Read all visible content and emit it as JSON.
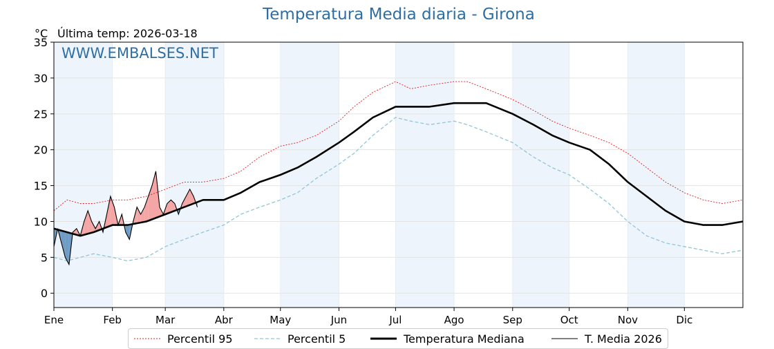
{
  "header": {
    "title": "Temperatura Media diaria - Girona",
    "unit": "°C",
    "subtitle": "Última temp: 2026-03-18",
    "watermark": "WWW.EMBALSES.NET"
  },
  "colors": {
    "p95": "#e31a1c",
    "p5": "#8fc6d8",
    "median": "#000000",
    "current": "#000000",
    "above_fill": "#f4a6a6",
    "below_fill": "#6f9cc4",
    "band": "#eef4fb",
    "title": "#2f6ea3"
  },
  "legend": {
    "p95": "Percentil 95",
    "p5": "Percentil 5",
    "median": "Temperatura Mediana",
    "current": "T. Media 2026"
  },
  "chart_data": {
    "type": "line",
    "title": "Temperatura Media diaria - Girona",
    "ylabel": "°C",
    "ylim": [
      -2,
      35
    ],
    "yticks": [
      0,
      5,
      10,
      15,
      20,
      25,
      30,
      35
    ],
    "xlim": [
      1,
      366
    ],
    "months": [
      "Ene",
      "Feb",
      "Mar",
      "Abr",
      "May",
      "Jun",
      "Jul",
      "Ago",
      "Sep",
      "Oct",
      "Nov",
      "Dic"
    ],
    "month_start_days": [
      1,
      32,
      60,
      91,
      121,
      152,
      182,
      213,
      244,
      274,
      305,
      335
    ],
    "shaded_months": [
      "Ene",
      "Mar",
      "May",
      "Jul",
      "Sep",
      "Nov"
    ],
    "grid": true,
    "legend_position": "bottom",
    "series": [
      {
        "name": "Percentil 95",
        "style": "dotted-red",
        "x": [
          1,
          8,
          15,
          22,
          32,
          40,
          50,
          60,
          70,
          80,
          91,
          100,
          110,
          121,
          130,
          140,
          152,
          160,
          170,
          182,
          190,
          200,
          213,
          220,
          230,
          244,
          255,
          265,
          274,
          285,
          295,
          305,
          315,
          325,
          335,
          345,
          355,
          366
        ],
        "y": [
          11.5,
          13,
          12.5,
          12.5,
          13,
          13,
          13.5,
          14.5,
          15.5,
          15.5,
          16,
          17,
          19,
          20.5,
          21,
          22,
          24,
          26,
          28,
          29.5,
          28.5,
          29,
          29.5,
          29.5,
          28.5,
          27,
          25.5,
          24,
          23,
          22,
          21,
          19.5,
          17.5,
          15.5,
          14,
          13,
          12.5,
          13
        ]
      },
      {
        "name": "Percentil 5",
        "style": "dashed-lightblue",
        "x": [
          1,
          8,
          15,
          22,
          32,
          40,
          50,
          60,
          70,
          80,
          91,
          100,
          110,
          121,
          130,
          140,
          152,
          160,
          170,
          182,
          190,
          200,
          213,
          220,
          230,
          244,
          255,
          265,
          274,
          285,
          295,
          305,
          315,
          325,
          335,
          345,
          355,
          366
        ],
        "y": [
          5,
          4.5,
          5,
          5.5,
          5,
          4.5,
          5,
          6.5,
          7.5,
          8.5,
          9.5,
          11,
          12,
          13,
          14,
          16,
          18,
          19.5,
          22,
          24.5,
          24,
          23.5,
          24,
          23.5,
          22.5,
          21,
          19,
          17.5,
          16.5,
          14.5,
          12.5,
          10,
          8,
          7,
          6.5,
          6,
          5.5,
          6
        ]
      },
      {
        "name": "Temperatura Mediana",
        "style": "thick-black",
        "x": [
          1,
          8,
          15,
          22,
          32,
          40,
          50,
          60,
          70,
          80,
          91,
          100,
          110,
          121,
          130,
          140,
          152,
          160,
          170,
          182,
          190,
          200,
          213,
          220,
          230,
          244,
          255,
          265,
          274,
          285,
          295,
          305,
          315,
          325,
          335,
          345,
          355,
          366
        ],
        "y": [
          9,
          8.5,
          8,
          8.5,
          9.5,
          9.5,
          10,
          11,
          12,
          13,
          13,
          14,
          15.5,
          16.5,
          17.5,
          19,
          21,
          22.5,
          24.5,
          26,
          26,
          26,
          26.5,
          26.5,
          26.5,
          25,
          23.5,
          22,
          21,
          20,
          18,
          15.5,
          13.5,
          11.5,
          10,
          9.5,
          9.5,
          10
        ]
      },
      {
        "name": "T. Media 2026",
        "style": "thin-black",
        "x": [
          1,
          3,
          5,
          7,
          9,
          11,
          13,
          15,
          17,
          19,
          21,
          23,
          25,
          27,
          29,
          31,
          33,
          35,
          37,
          39,
          41,
          43,
          45,
          47,
          49,
          51,
          53,
          55,
          57,
          59,
          61,
          63,
          65,
          67,
          69,
          71,
          73,
          75,
          77
        ],
        "y": [
          6.5,
          9,
          7,
          5,
          4,
          8.5,
          9,
          8,
          10,
          11.5,
          10,
          9,
          10,
          8.5,
          11,
          13.5,
          12,
          9.5,
          11,
          8.5,
          7.5,
          10,
          12,
          11,
          12,
          13.5,
          15,
          17,
          12,
          11,
          12.5,
          13,
          12.5,
          11,
          12.5,
          13.5,
          14.5,
          13.5,
          12
        ]
      }
    ]
  }
}
